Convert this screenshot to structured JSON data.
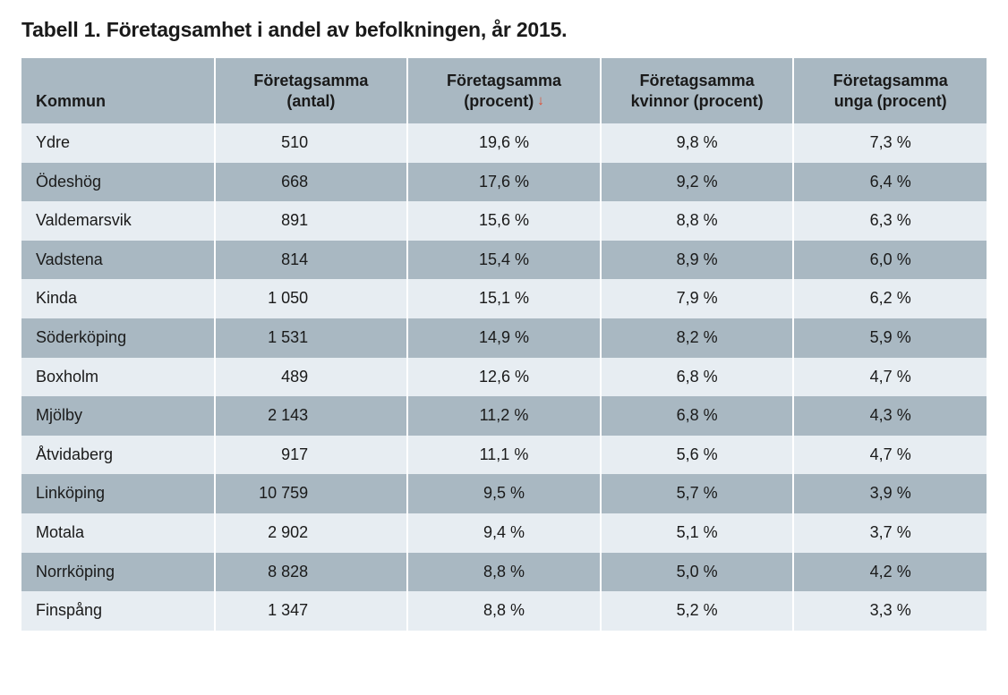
{
  "title": "Tabell 1. Företagsamhet i andel av befolkningen, år 2015.",
  "table": {
    "type": "table",
    "header_bg": "#a9b8c2",
    "row_odd_bg": "#e7edf2",
    "row_even_bg": "#a9b8c2",
    "cell_border_color": "#ffffff",
    "text_color": "#1a1a1a",
    "sort_arrow_color": "#e1492c",
    "font_size_header": 18,
    "font_size_body": 18,
    "columns": [
      {
        "key": "kommun",
        "label": "Kommun",
        "align": "left"
      },
      {
        "key": "antal",
        "label": "Företagsamma\n(antal)",
        "align": "right"
      },
      {
        "key": "procent",
        "label": "Företagsamma\n(procent)",
        "align": "center",
        "sorted": "desc"
      },
      {
        "key": "kvinnor",
        "label": "Företagsamma\nkvinnor (procent)",
        "align": "center"
      },
      {
        "key": "unga",
        "label": "Företagsamma\nunga (procent)",
        "align": "center"
      }
    ],
    "rows": [
      {
        "kommun": "Ydre",
        "antal": "510",
        "procent": "19,6 %",
        "kvinnor": "9,8 %",
        "unga": "7,3 %"
      },
      {
        "kommun": "Ödeshög",
        "antal": "668",
        "procent": "17,6 %",
        "kvinnor": "9,2 %",
        "unga": "6,4 %"
      },
      {
        "kommun": "Valdemarsvik",
        "antal": "891",
        "procent": "15,6 %",
        "kvinnor": "8,8 %",
        "unga": "6,3 %"
      },
      {
        "kommun": "Vadstena",
        "antal": "814",
        "procent": "15,4 %",
        "kvinnor": "8,9 %",
        "unga": "6,0 %"
      },
      {
        "kommun": "Kinda",
        "antal": "1 050",
        "procent": "15,1 %",
        "kvinnor": "7,9 %",
        "unga": "6,2 %"
      },
      {
        "kommun": "Söderköping",
        "antal": "1 531",
        "procent": "14,9 %",
        "kvinnor": "8,2 %",
        "unga": "5,9 %"
      },
      {
        "kommun": "Boxholm",
        "antal": "489",
        "procent": "12,6 %",
        "kvinnor": "6,8 %",
        "unga": "4,7 %"
      },
      {
        "kommun": "Mjölby",
        "antal": "2 143",
        "procent": "11,2 %",
        "kvinnor": "6,8 %",
        "unga": "4,3 %"
      },
      {
        "kommun": "Åtvidaberg",
        "antal": "917",
        "procent": "11,1 %",
        "kvinnor": "5,6 %",
        "unga": "4,7 %"
      },
      {
        "kommun": "Linköping",
        "antal": "10 759",
        "procent": "9,5 %",
        "kvinnor": "5,7 %",
        "unga": "3,9 %"
      },
      {
        "kommun": "Motala",
        "antal": "2 902",
        "procent": "9,4 %",
        "kvinnor": "5,1 %",
        "unga": "3,7 %"
      },
      {
        "kommun": "Norrköping",
        "antal": "8 828",
        "procent": "8,8 %",
        "kvinnor": "5,0 %",
        "unga": "4,2 %"
      },
      {
        "kommun": "Finspång",
        "antal": "1 347",
        "procent": "8,8 %",
        "kvinnor": "5,2 %",
        "unga": "3,3 %"
      }
    ]
  }
}
